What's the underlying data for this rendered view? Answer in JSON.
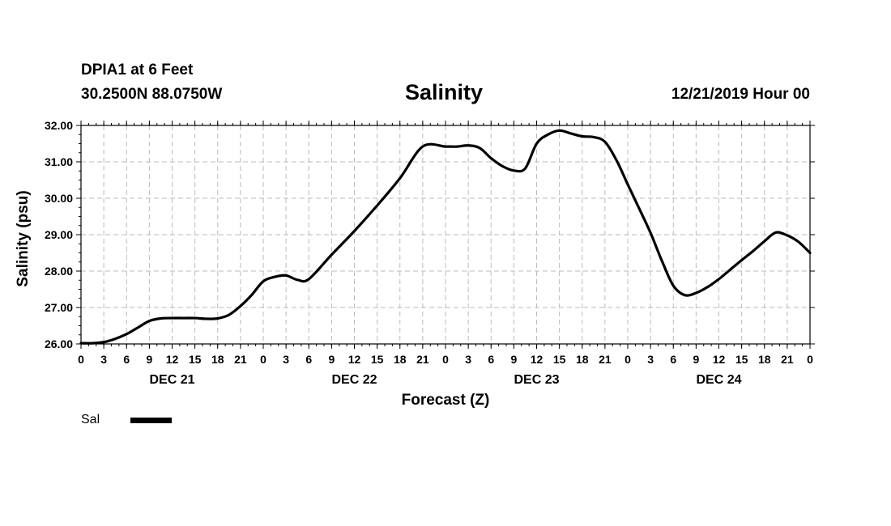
{
  "header": {
    "station": "DPIA1 at 6 Feet",
    "coords": "30.2500N 88.0750W",
    "title": "Salinity",
    "forecast": "12/21/2019 Hour 00"
  },
  "legend": {
    "label": "Sal"
  },
  "chart_data": {
    "type": "line",
    "title": "Salinity",
    "xlabel": "Forecast (Z)",
    "ylabel": "Salinity (psu)",
    "ylim": [
      26.0,
      32.0
    ],
    "yticks": [
      "26.00",
      "27.00",
      "28.00",
      "29.00",
      "30.00",
      "31.00",
      "32.00"
    ],
    "xlim_hours": [
      0,
      96
    ],
    "xticks": [
      "0",
      "3",
      "6",
      "9",
      "12",
      "15",
      "18",
      "21",
      "0",
      "3",
      "6",
      "9",
      "12",
      "15",
      "18",
      "21",
      "0",
      "3",
      "6",
      "9",
      "12",
      "15",
      "18",
      "21",
      "0",
      "3",
      "6",
      "9",
      "12",
      "15",
      "18",
      "21",
      "0"
    ],
    "day_labels": [
      {
        "label": "DEC 21",
        "hour": 12
      },
      {
        "label": "DEC 22",
        "hour": 36
      },
      {
        "label": "DEC 23",
        "hour": 60
      },
      {
        "label": "DEC 24",
        "hour": 84
      }
    ],
    "grid": true,
    "legend_position": "bottom-left",
    "series": [
      {
        "name": "Sal",
        "color": "#000000",
        "x": [
          0,
          1.5,
          3,
          4.5,
          6,
          7.5,
          9,
          10.5,
          12,
          13.5,
          15,
          16.5,
          18,
          19.5,
          21,
          22.5,
          24,
          25.5,
          27,
          28.5,
          30,
          33,
          36,
          39,
          42,
          45,
          48,
          49.5,
          51,
          52.5,
          54,
          55.5,
          57,
          58.5,
          60,
          61.5,
          63,
          64.5,
          66,
          67.5,
          69,
          70.5,
          72,
          73.5,
          75,
          76.5,
          78,
          79.5,
          81,
          82.5,
          84,
          85.5,
          87,
          88.5,
          90,
          91.5,
          93,
          94.5,
          96
        ],
        "y": [
          26.02,
          26.02,
          26.05,
          26.14,
          26.27,
          26.45,
          26.63,
          26.7,
          26.71,
          26.71,
          26.71,
          26.69,
          26.7,
          26.8,
          27.04,
          27.35,
          27.72,
          27.84,
          27.88,
          27.76,
          27.78,
          28.45,
          29.1,
          29.8,
          30.55,
          31.42,
          31.42,
          31.42,
          31.45,
          31.38,
          31.1,
          30.88,
          30.76,
          30.82,
          31.5,
          31.75,
          31.86,
          31.78,
          31.7,
          31.68,
          31.55,
          31.05,
          30.38,
          29.72,
          29.05,
          28.28,
          27.6,
          27.34,
          27.4,
          27.56,
          27.78,
          28.04,
          28.3,
          28.55,
          28.82,
          29.06,
          28.98,
          28.8,
          28.5
        ]
      }
    ]
  }
}
